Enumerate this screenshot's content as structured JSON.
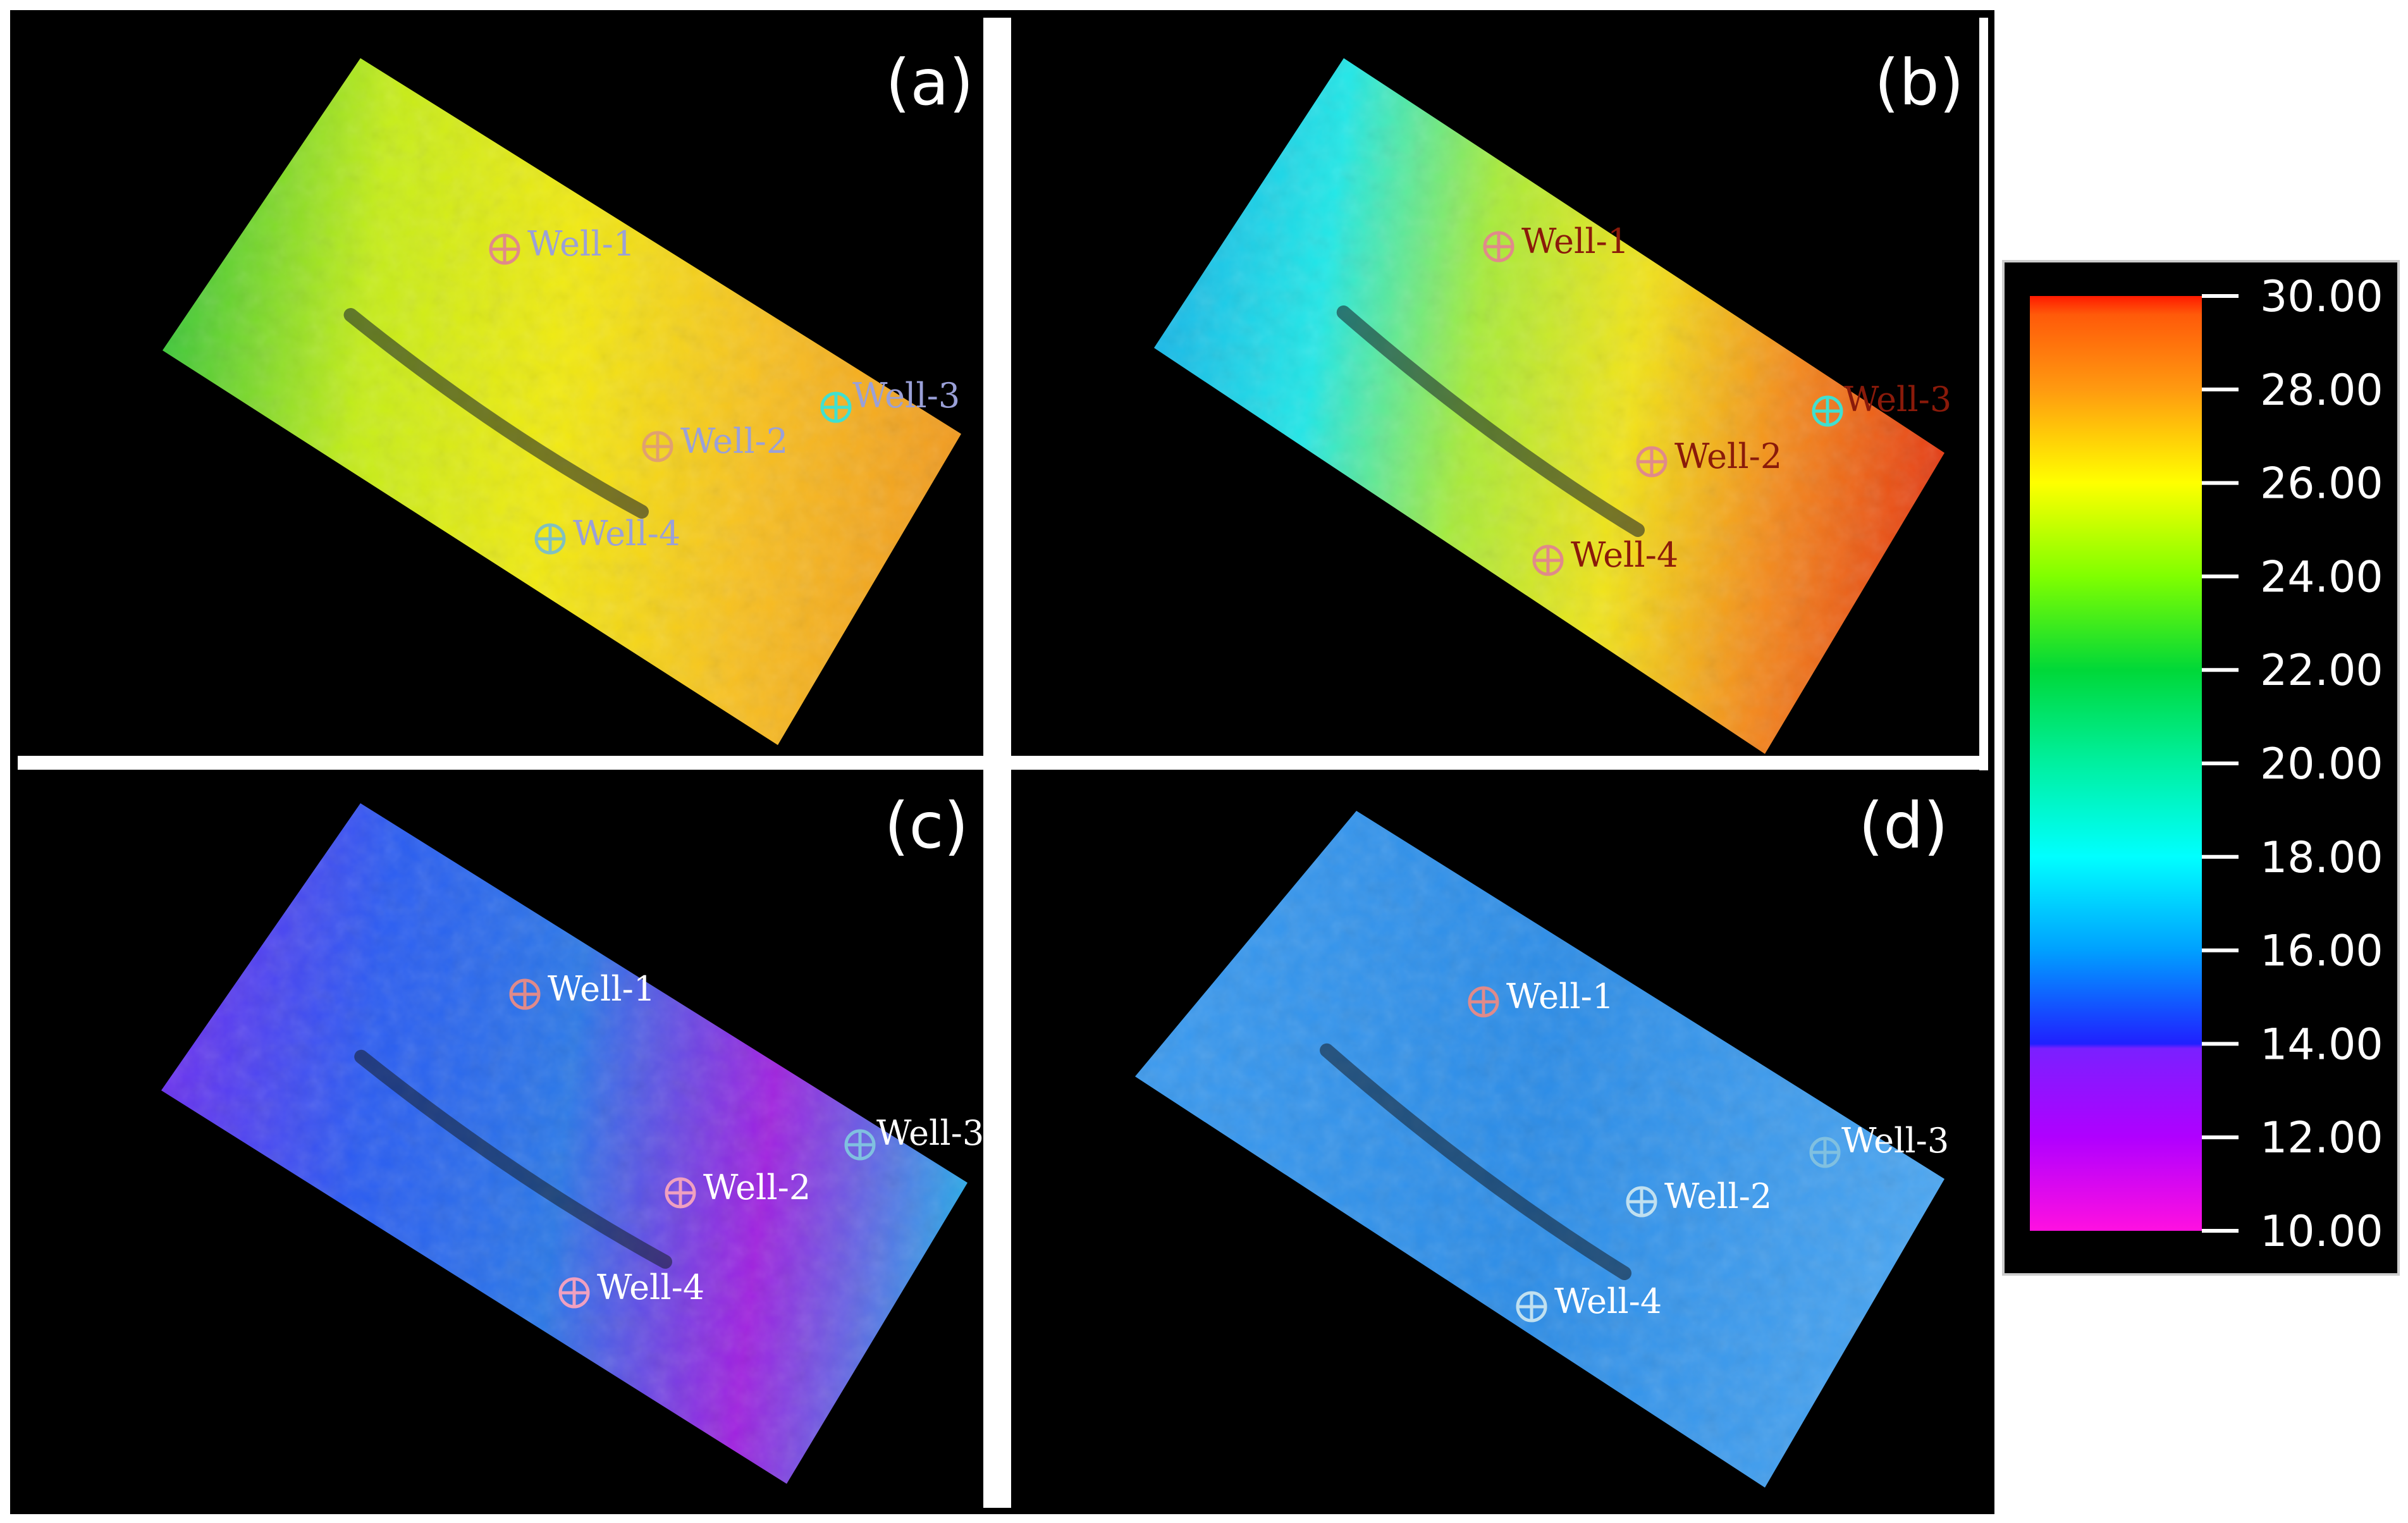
{
  "panels": [
    {
      "id": "a",
      "label": "(a)",
      "fill_colors": [
        "#3ec83a",
        "#c6ee18",
        "#f2ea10",
        "#f8c020",
        "#f29a1e"
      ],
      "well_label_color": "#9aa0d8",
      "wells": [
        {
          "label": "Well-1",
          "marker_color": "#e08a8a"
        },
        {
          "label": "Well-2",
          "marker_color": "#e0a070"
        },
        {
          "label": "Well-3",
          "marker_color": "#40e0d0"
        },
        {
          "label": "Well-4",
          "marker_color": "#80c0c0"
        }
      ]
    },
    {
      "id": "b",
      "label": "(b)",
      "fill_colors": [
        "#18b8e8",
        "#20e8e8",
        "#a8ec38",
        "#f2e418",
        "#f48a1c",
        "#e63a12"
      ],
      "well_label_color": "#8a1a0a",
      "wells": [
        {
          "label": "Well-1",
          "marker_color": "#e08a8a"
        },
        {
          "label": "Well-2",
          "marker_color": "#e08a8a"
        },
        {
          "label": "Well-3",
          "marker_color": "#40e0d0"
        },
        {
          "label": "Well-4",
          "marker_color": "#e08a8a"
        }
      ]
    },
    {
      "id": "c",
      "label": "(c)",
      "fill_colors": [
        "#6a30f0",
        "#2a5cf2",
        "#2a78e8",
        "#a020e0",
        "#28a8e8"
      ],
      "well_label_color": "#ffffff",
      "wells": [
        {
          "label": "Well-1",
          "marker_color": "#e08a8a"
        },
        {
          "label": "Well-2",
          "marker_color": "#f0a0c0"
        },
        {
          "label": "Well-3",
          "marker_color": "#80c0e0"
        },
        {
          "label": "Well-4",
          "marker_color": "#f0a0c0"
        }
      ]
    },
    {
      "id": "d",
      "label": "(d)",
      "fill_colors": [
        "#3a9af0",
        "#2a8ce8",
        "#4aa6f2"
      ],
      "well_label_color": "#ffffff",
      "wells": [
        {
          "label": "Well-1",
          "marker_color": "#e08a8a"
        },
        {
          "label": "Well-2",
          "marker_color": "#c0e0f0"
        },
        {
          "label": "Well-3",
          "marker_color": "#80c0e0"
        },
        {
          "label": "Well-4",
          "marker_color": "#c0e0f0"
        }
      ]
    }
  ],
  "colorbar": {
    "ticks": [
      "30.00",
      "28.00",
      "26.00",
      "24.00",
      "22.00",
      "20.00",
      "18.00",
      "16.00",
      "14.00",
      "12.00",
      "10.00"
    ],
    "min": 10,
    "max": 30,
    "stops": [
      {
        "value": 30,
        "color": "#ff1a00"
      },
      {
        "value": 29.6,
        "color": "#ff5a0a"
      },
      {
        "value": 28,
        "color": "#ff9a10"
      },
      {
        "value": 26,
        "color": "#ffff00"
      },
      {
        "value": 24,
        "color": "#80ff00"
      },
      {
        "value": 22,
        "color": "#00d838"
      },
      {
        "value": 20,
        "color": "#00f0a0"
      },
      {
        "value": 18,
        "color": "#00ffff"
      },
      {
        "value": 16,
        "color": "#00a0ff"
      },
      {
        "value": 14,
        "color": "#2020ff"
      },
      {
        "value": 13.9,
        "color": "#7a20ff"
      },
      {
        "value": 12,
        "color": "#b000ff"
      },
      {
        "value": 10,
        "color": "#ff10e0"
      }
    ]
  }
}
